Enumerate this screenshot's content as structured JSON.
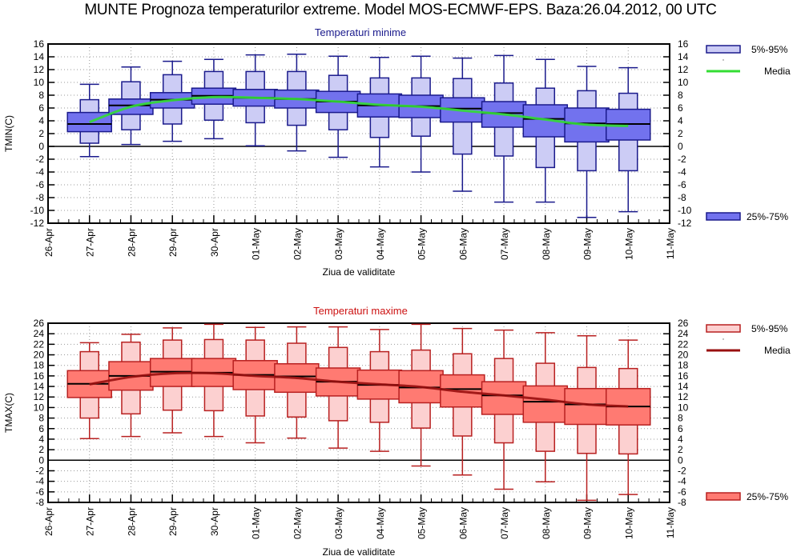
{
  "page_title": "MUNTE  Prognoza temperaturilor extreme.  Model MOS-ECMWF-EPS. Baza:26.04.2012, 00 UTC",
  "chart_data": [
    {
      "type": "boxplot",
      "title": "Temperaturi minime",
      "xlabel": "Ziua de validitate",
      "ylabel": "TMIN(C)",
      "ylim": [
        -12,
        16
      ],
      "yticks": [
        -12,
        -10,
        -8,
        -6,
        -4,
        -2,
        0,
        2,
        4,
        6,
        8,
        10,
        12,
        14,
        16
      ],
      "xtick_labels": [
        "26-Apr",
        "27-Apr",
        "28-Apr",
        "29-Apr",
        "30-Apr",
        "01-May",
        "02-May",
        "03-May",
        "04-May",
        "05-May",
        "06-May",
        "07-May",
        "08-May",
        "09-May",
        "10-May",
        "11-May"
      ],
      "grid": true,
      "colors": {
        "outer": "#ccccf5",
        "inner": "#7272ee",
        "edge": "#1a1a8c",
        "media": "#33dd33",
        "title": "#1a1a8c"
      },
      "legend": {
        "position": "right",
        "outer_label": "5%-95%",
        "media_label": "Media",
        "inner_label": "25%-75%"
      },
      "categories": [
        "27-Apr",
        "28-Apr",
        "29-Apr",
        "30-Apr",
        "01-May",
        "02-May",
        "03-May",
        "04-May",
        "05-May",
        "06-May",
        "07-May",
        "08-May",
        "09-May",
        "10-May"
      ],
      "series": {
        "min": [
          -1.6,
          0.3,
          0.8,
          1.2,
          0.1,
          -0.7,
          -1.7,
          -3.2,
          -4.0,
          -7.0,
          -8.7,
          -8.7,
          -11.1,
          -10.2
        ],
        "p5": [
          0.5,
          2.6,
          3.5,
          4.1,
          3.7,
          3.3,
          2.6,
          1.4,
          1.6,
          -1.2,
          -1.5,
          -3.3,
          -3.8,
          -3.8
        ],
        "q1": [
          2.3,
          5.0,
          6.0,
          6.6,
          6.3,
          6.0,
          5.3,
          4.6,
          4.5,
          3.8,
          3.0,
          1.5,
          0.7,
          1.0
        ],
        "median": [
          3.5,
          6.4,
          7.3,
          7.9,
          7.6,
          7.4,
          7.0,
          6.4,
          6.3,
          5.9,
          5.2,
          4.3,
          3.6,
          3.5
        ],
        "q3": [
          5.3,
          7.4,
          8.4,
          9.1,
          8.9,
          8.8,
          8.6,
          8.2,
          8.0,
          7.6,
          7.0,
          6.5,
          6.0,
          5.8
        ],
        "p95": [
          7.3,
          10.1,
          11.2,
          11.7,
          11.7,
          11.7,
          11.1,
          10.7,
          10.7,
          10.6,
          9.9,
          9.1,
          8.7,
          8.3
        ],
        "max": [
          9.7,
          12.4,
          13.3,
          13.6,
          14.3,
          14.4,
          14.1,
          13.9,
          14.1,
          13.8,
          14.2,
          13.6,
          12.5,
          12.3
        ],
        "media": [
          3.8,
          6.2,
          7.2,
          7.7,
          7.6,
          7.4,
          7.0,
          6.5,
          6.2,
          5.6,
          5.0,
          4.2,
          3.4,
          3.2
        ]
      }
    },
    {
      "type": "boxplot",
      "title": "Temperaturi maxime",
      "xlabel": "Ziua de validitate",
      "ylabel": "TMAX(C)",
      "ylim": [
        -8,
        26
      ],
      "yticks": [
        -8,
        -6,
        -4,
        -2,
        0,
        2,
        4,
        6,
        8,
        10,
        12,
        14,
        16,
        18,
        20,
        22,
        24,
        26
      ],
      "xtick_labels": [
        "26-Apr",
        "27-Apr",
        "28-Apr",
        "29-Apr",
        "30-Apr",
        "01-May",
        "02-May",
        "03-May",
        "04-May",
        "05-May",
        "06-May",
        "07-May",
        "08-May",
        "09-May",
        "10-May",
        "11-May"
      ],
      "grid": true,
      "colors": {
        "outer": "#fcd0d0",
        "inner": "#ff7a72",
        "edge": "#b82020",
        "media": "#990f0f",
        "title": "#cc1111"
      },
      "legend": {
        "position": "right",
        "outer_label": "5%-95%",
        "media_label": "Media",
        "inner_label": "25%-75%"
      },
      "categories": [
        "27-Apr",
        "28-Apr",
        "29-Apr",
        "30-Apr",
        "01-May",
        "02-May",
        "03-May",
        "04-May",
        "05-May",
        "06-May",
        "07-May",
        "08-May",
        "09-May",
        "10-May"
      ],
      "series": {
        "min": [
          4.1,
          4.5,
          5.2,
          4.5,
          3.3,
          4.2,
          2.3,
          1.7,
          -1.1,
          -2.8,
          -5.5,
          -4.1,
          -7.6,
          -6.5
        ],
        "p5": [
          8.0,
          8.8,
          9.5,
          9.4,
          8.4,
          8.2,
          7.5,
          7.2,
          6.1,
          4.6,
          3.3,
          1.7,
          1.3,
          1.2
        ],
        "q1": [
          11.9,
          13.3,
          14.0,
          14.0,
          13.4,
          12.9,
          12.2,
          11.6,
          10.9,
          10.1,
          8.7,
          7.2,
          6.8,
          6.7
        ],
        "median": [
          14.5,
          16.0,
          16.8,
          16.6,
          16.2,
          15.9,
          14.9,
          14.3,
          13.8,
          13.5,
          12.3,
          11.1,
          10.6,
          10.2
        ],
        "q3": [
          17.0,
          18.7,
          19.3,
          19.3,
          18.9,
          18.3,
          17.5,
          17.1,
          17.0,
          16.2,
          14.9,
          14.1,
          13.6,
          13.6
        ],
        "p95": [
          20.6,
          22.4,
          22.8,
          22.9,
          22.8,
          22.2,
          21.4,
          20.6,
          20.9,
          20.2,
          19.3,
          18.4,
          17.6,
          17.4
        ],
        "max": [
          22.3,
          23.9,
          25.1,
          25.8,
          25.2,
          25.3,
          25.3,
          24.8,
          25.8,
          25.0,
          24.7,
          24.2,
          23.6,
          22.8
        ],
        "media": [
          14.4,
          15.8,
          16.5,
          16.5,
          16.0,
          15.6,
          14.9,
          14.4,
          13.9,
          13.0,
          12.3,
          11.5,
          10.6,
          10.2
        ]
      }
    }
  ]
}
